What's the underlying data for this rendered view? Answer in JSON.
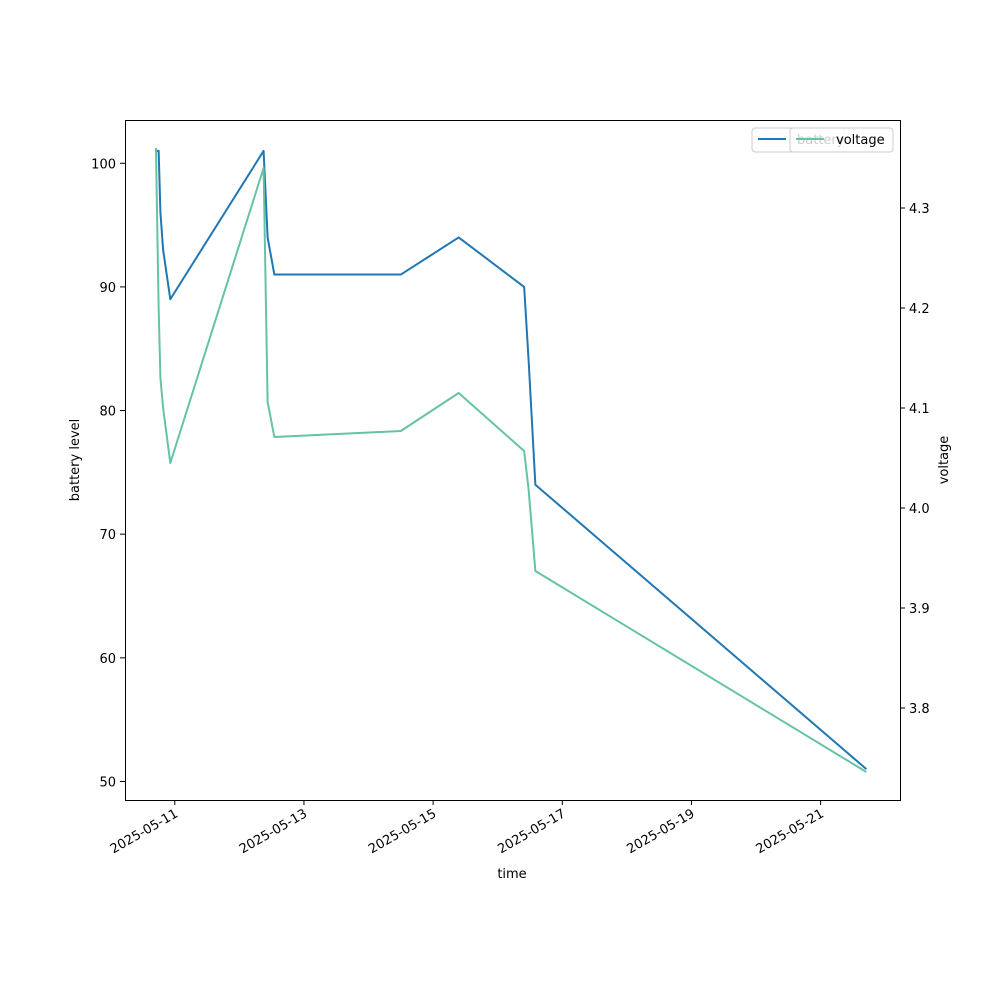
{
  "chart_data": {
    "type": "line",
    "title": "",
    "xlabel": "time",
    "ylabel_left": "battery level",
    "ylabel_right": "voltage",
    "x_ticks": [
      "2025-05-11",
      "2025-05-13",
      "2025-05-15",
      "2025-05-17",
      "2025-05-19",
      "2025-05-21"
    ],
    "y_left_ticks": [
      50,
      60,
      70,
      80,
      90,
      100
    ],
    "y_right_ticks": [
      3.8,
      3.9,
      4.0,
      4.1,
      4.2,
      4.3
    ],
    "y_left_lim": [
      48.5,
      103.5
    ],
    "y_right_lim": [
      3.708,
      4.388
    ],
    "x_lim": [
      "2025-05-10T05:30",
      "2025-05-22T05:30"
    ],
    "grid": false,
    "legend": {
      "placement": "top-right",
      "entries": [
        "battery",
        "voltage"
      ]
    },
    "series": [
      {
        "name": "battery",
        "axis": "left",
        "color": "#1f77b4",
        "points": [
          [
            "2025-05-10T17:00",
            101
          ],
          [
            "2025-05-10T18:00",
            101
          ],
          [
            "2025-05-10T18:40",
            96
          ],
          [
            "2025-05-10T19:40",
            93
          ],
          [
            "2025-05-10T22:20",
            89
          ],
          [
            "2025-05-12T09:00",
            101
          ],
          [
            "2025-05-12T10:30",
            94
          ],
          [
            "2025-05-12T13:00",
            91
          ],
          [
            "2025-05-14T12:00",
            91
          ],
          [
            "2025-05-15T09:30",
            94
          ],
          [
            "2025-05-16T09:50",
            90
          ],
          [
            "2025-05-16T11:30",
            84
          ],
          [
            "2025-05-16T14:00",
            74
          ],
          [
            "2025-05-21T17:00",
            51
          ]
        ]
      },
      {
        "name": "voltage",
        "axis": "right",
        "color": "#66c2a5",
        "points": [
          [
            "2025-05-10T17:00",
            4.36
          ],
          [
            "2025-05-10T18:00",
            4.2
          ],
          [
            "2025-05-10T18:40",
            4.13
          ],
          [
            "2025-05-10T19:40",
            4.1
          ],
          [
            "2025-05-10T22:20",
            4.045
          ],
          [
            "2025-05-12T09:00",
            4.34
          ],
          [
            "2025-05-12T10:30",
            4.106
          ],
          [
            "2025-05-12T13:00",
            4.071
          ],
          [
            "2025-05-14T12:00",
            4.077
          ],
          [
            "2025-05-15T09:30",
            4.115
          ],
          [
            "2025-05-16T09:50",
            4.057
          ],
          [
            "2025-05-16T11:30",
            4.018
          ],
          [
            "2025-05-16T14:00",
            3.937
          ],
          [
            "2025-05-21T17:00",
            3.736
          ]
        ]
      }
    ]
  }
}
